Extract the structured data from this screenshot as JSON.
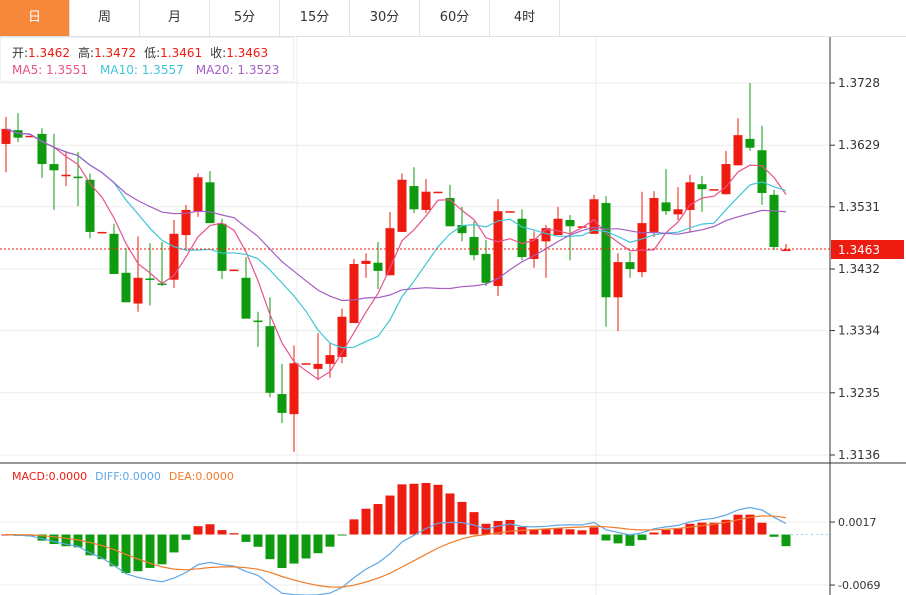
{
  "tabs": [
    {
      "label": "日",
      "active": true
    },
    {
      "label": "周"
    },
    {
      "label": "月"
    },
    {
      "label": "5分"
    },
    {
      "label": "15分"
    },
    {
      "label": "30分"
    },
    {
      "label": "60分"
    },
    {
      "label": "4时"
    }
  ],
  "legend": {
    "open_label": "开:",
    "open": "1.3462",
    "high_label": "高:",
    "high": "1.3472",
    "low_label": "低:",
    "low": "1.3461",
    "close_label": "收:",
    "close": "1.3463",
    "ma5": "MA5: 1.3551",
    "ma10": "MA10: 1.3557",
    "ma20": "MA20: 1.3523"
  },
  "macd_legend": {
    "macd": "MACD:0.0000",
    "diff": "DIFF:0.0000",
    "dea": "DEA:0.0000"
  },
  "current_price": "1.3463",
  "colors": {
    "up": "#ee1c10",
    "down": "#0f9b0f",
    "ma5": "#e8528a",
    "ma10": "#3fc6d6",
    "ma20": "#a45ec6",
    "diff": "#5ea6e6",
    "dea": "#f07c2c",
    "active_tab": "#f5883b"
  },
  "chart_data": [
    {
      "type": "candlestick",
      "y_ticks": [
        "1.3728",
        "1.3629",
        "1.3531",
        "1.3432",
        "1.3334",
        "1.3235",
        "1.3136"
      ],
      "ylim": [
        1.3136,
        1.3728
      ],
      "grid": true,
      "overlays": [
        "MA5",
        "MA10",
        "MA20"
      ],
      "ohlc": [
        [
          1.3631,
          1.3674,
          1.3586,
          1.3655
        ],
        [
          1.3653,
          1.368,
          1.3634,
          1.3641
        ],
        [
          1.3643,
          1.3644,
          1.3643,
          1.3644
        ],
        [
          1.3647,
          1.3656,
          1.3577,
          1.3599
        ],
        [
          1.3599,
          1.3647,
          1.3526,
          1.3589
        ],
        [
          1.3581,
          1.362,
          1.3564,
          1.3582
        ],
        [
          1.3579,
          1.3618,
          1.3532,
          1.3578
        ],
        [
          1.3574,
          1.3584,
          1.3481,
          1.3491
        ],
        [
          1.349,
          1.3491,
          1.349,
          1.3491
        ],
        [
          1.3488,
          1.3504,
          1.3424,
          1.3424
        ],
        [
          1.3426,
          1.3465,
          1.3379,
          1.3379
        ],
        [
          1.3377,
          1.3484,
          1.3364,
          1.3418
        ],
        [
          1.3417,
          1.3473,
          1.3374,
          1.3416
        ],
        [
          1.3409,
          1.3475,
          1.3405,
          1.3408
        ],
        [
          1.3415,
          1.351,
          1.3402,
          1.3488
        ],
        [
          1.3486,
          1.3534,
          1.3462,
          1.3526
        ],
        [
          1.3523,
          1.3584,
          1.3515,
          1.3578
        ],
        [
          1.357,
          1.3588,
          1.3505,
          1.3505
        ],
        [
          1.3504,
          1.3512,
          1.3416,
          1.3429
        ],
        [
          1.343,
          1.3431,
          1.343,
          1.3431
        ],
        [
          1.3418,
          1.3451,
          1.3353,
          1.3353
        ],
        [
          1.335,
          1.3364,
          1.3308,
          1.3349
        ],
        [
          1.3341,
          1.3387,
          1.3228,
          1.3235
        ],
        [
          1.3233,
          1.3281,
          1.3187,
          1.3203
        ],
        [
          1.3201,
          1.331,
          1.3141,
          1.3282
        ],
        [
          1.3281,
          1.3282,
          1.3281,
          1.3282
        ],
        [
          1.3273,
          1.333,
          1.3255,
          1.3281
        ],
        [
          1.3281,
          1.3314,
          1.3259,
          1.3295
        ],
        [
          1.3292,
          1.3369,
          1.3282,
          1.3356
        ],
        [
          1.3346,
          1.3448,
          1.3346,
          1.344
        ],
        [
          1.344,
          1.3457,
          1.3418,
          1.3445
        ],
        [
          1.3442,
          1.3475,
          1.34,
          1.3429
        ],
        [
          1.3422,
          1.3523,
          1.3422,
          1.3497
        ],
        [
          1.3491,
          1.3584,
          1.3491,
          1.3574
        ],
        [
          1.3564,
          1.3594,
          1.3521,
          1.3527
        ],
        [
          1.3526,
          1.3575,
          1.3521,
          1.3555
        ],
        [
          1.3554,
          1.3555,
          1.3554,
          1.3555
        ],
        [
          1.3545,
          1.3566,
          1.35,
          1.35
        ],
        [
          1.3502,
          1.3531,
          1.3476,
          1.3489
        ],
        [
          1.3483,
          1.3508,
          1.3446,
          1.3454
        ],
        [
          1.3456,
          1.3478,
          1.3405,
          1.341
        ],
        [
          1.3405,
          1.3543,
          1.3389,
          1.3524
        ],
        [
          1.3523,
          1.3524,
          1.3523,
          1.3524
        ],
        [
          1.3512,
          1.3527,
          1.3446,
          1.3451
        ],
        [
          1.3448,
          1.3492,
          1.3434,
          1.348
        ],
        [
          1.3476,
          1.3502,
          1.3418,
          1.3497
        ],
        [
          1.3486,
          1.3531,
          1.3486,
          1.3512
        ],
        [
          1.351,
          1.3518,
          1.3446,
          1.35
        ],
        [
          1.3499,
          1.35,
          1.3499,
          1.35
        ],
        [
          1.3488,
          1.355,
          1.3488,
          1.3543
        ],
        [
          1.3537,
          1.3548,
          1.334,
          1.3387
        ],
        [
          1.3387,
          1.3457,
          1.3333,
          1.3443
        ],
        [
          1.3443,
          1.3459,
          1.3418,
          1.3432
        ],
        [
          1.3427,
          1.3555,
          1.3419,
          1.3505
        ],
        [
          1.3491,
          1.3556,
          1.3483,
          1.3545
        ],
        [
          1.3538,
          1.3591,
          1.3518,
          1.3524
        ],
        [
          1.3519,
          1.3562,
          1.351,
          1.3527
        ],
        [
          1.3526,
          1.3582,
          1.3491,
          1.357
        ],
        [
          1.3567,
          1.358,
          1.3523,
          1.3559
        ],
        [
          1.3558,
          1.3559,
          1.3558,
          1.3559
        ],
        [
          1.3551,
          1.362,
          1.3551,
          1.3599
        ],
        [
          1.3597,
          1.3672,
          1.3597,
          1.3645
        ],
        [
          1.3639,
          1.3728,
          1.362,
          1.3625
        ],
        [
          1.3621,
          1.366,
          1.3534,
          1.3553
        ],
        [
          1.355,
          1.3558,
          1.3462,
          1.3467
        ],
        [
          1.3462,
          1.3472,
          1.3461,
          1.3463
        ]
      ]
    },
    {
      "type": "bar",
      "indicator": "MACD",
      "y_ticks": [
        "0.0017",
        "-0.0069"
      ],
      "series": [
        {
          "name": "MACD"
        },
        {
          "name": "DIFF"
        },
        {
          "name": "DEA"
        }
      ]
    }
  ]
}
